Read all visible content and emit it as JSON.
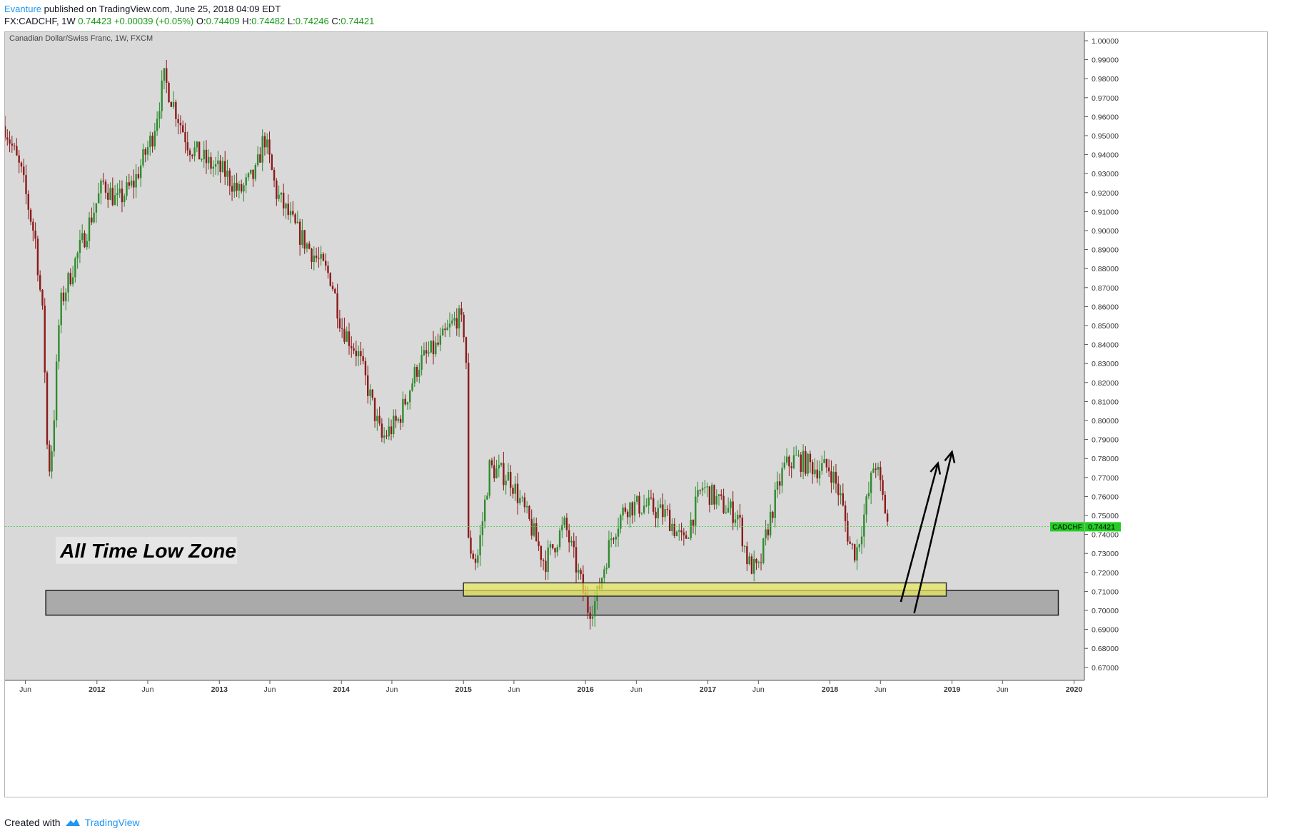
{
  "header": {
    "author": "Evanture",
    "published": " published on TradingView.com, June 25, 2018 04:09 EDT",
    "symbol": "FX:CADCHF, 1W",
    "last": "0.74423",
    "change": "+0.00039 (+0.05%)",
    "o_label": "O:",
    "o_value": "0.74409",
    "h_label": "H:",
    "h_value": "0.74482",
    "l_label": "L:",
    "l_value": "0.74246",
    "c_label": "C:",
    "c_value": "0.74421"
  },
  "footer": {
    "created_with": "Created with",
    "brand": "TradingView"
  },
  "colors": {
    "up": "#2e8b2e",
    "down": "#8b1a1a",
    "zone_gray": "#9a9a9a",
    "zone_yellow": "#e8e85a",
    "price_badge": "#22cc22",
    "plot_bg": "#d9d9d9"
  },
  "chart_data": {
    "type": "candlestick",
    "title": "Canadian Dollar/Swiss Franc, 1W, FXCM",
    "symbol": "CADCHF",
    "last_price": 0.74421,
    "last_price_label": "0.74421",
    "ylim": [
      0.665,
      1.005
    ],
    "y_ticks": [
      "1.00000",
      "0.99000",
      "0.98000",
      "0.97000",
      "0.96000",
      "0.95000",
      "0.94000",
      "0.93000",
      "0.92000",
      "0.91000",
      "0.90000",
      "0.89000",
      "0.88000",
      "0.87000",
      "0.86000",
      "0.85000",
      "0.84000",
      "0.83000",
      "0.82000",
      "0.81000",
      "0.80000",
      "0.79000",
      "0.78000",
      "0.77000",
      "0.76000",
      "0.75000",
      "0.74000",
      "0.73000",
      "0.72000",
      "0.71000",
      "0.70000",
      "0.69000",
      "0.68000",
      "0.67000"
    ],
    "x_range": [
      "2011-04-01",
      "2020-02-01"
    ],
    "x_ticks": [
      {
        "date": "2011-06-01",
        "label": "Jun"
      },
      {
        "date": "2012-01-01",
        "label": "2012"
      },
      {
        "date": "2012-06-01",
        "label": "Jun"
      },
      {
        "date": "2013-01-01",
        "label": "2013"
      },
      {
        "date": "2013-06-01",
        "label": "Jun"
      },
      {
        "date": "2014-01-01",
        "label": "2014"
      },
      {
        "date": "2014-06-01",
        "label": "Jun"
      },
      {
        "date": "2015-01-01",
        "label": "2015"
      },
      {
        "date": "2015-06-01",
        "label": "Jun"
      },
      {
        "date": "2016-01-01",
        "label": "2016"
      },
      {
        "date": "2016-06-01",
        "label": "Jun"
      },
      {
        "date": "2017-01-01",
        "label": "2017"
      },
      {
        "date": "2017-06-01",
        "label": "Jun"
      },
      {
        "date": "2018-01-01",
        "label": "2018"
      },
      {
        "date": "2018-06-01",
        "label": "Jun"
      },
      {
        "date": "2019-01-01",
        "label": "2019"
      },
      {
        "date": "2019-06-01",
        "label": "Jun"
      },
      {
        "date": "2020-01-01",
        "label": "2020"
      }
    ],
    "price_path": [
      [
        "2011-04-01",
        0.955
      ],
      [
        "2011-05-20",
        0.93
      ],
      [
        "2011-07-01",
        0.895
      ],
      [
        "2011-07-25",
        0.85
      ],
      [
        "2011-08-08",
        0.77
      ],
      [
        "2011-08-22",
        0.79
      ],
      [
        "2011-09-12",
        0.86
      ],
      [
        "2011-10-20",
        0.88
      ],
      [
        "2011-12-01",
        0.9
      ],
      [
        "2012-01-20",
        0.925
      ],
      [
        "2012-03-01",
        0.915
      ],
      [
        "2012-04-20",
        0.925
      ],
      [
        "2012-06-15",
        0.95
      ],
      [
        "2012-07-20",
        0.98
      ],
      [
        "2012-08-20",
        0.965
      ],
      [
        "2012-10-01",
        0.945
      ],
      [
        "2012-12-01",
        0.935
      ],
      [
        "2013-01-20",
        0.93
      ],
      [
        "2013-03-01",
        0.92
      ],
      [
        "2013-04-20",
        0.93
      ],
      [
        "2013-05-15",
        0.95
      ],
      [
        "2013-06-20",
        0.92
      ],
      [
        "2013-08-20",
        0.9
      ],
      [
        "2013-10-20",
        0.885
      ],
      [
        "2013-12-01",
        0.875
      ],
      [
        "2014-01-01",
        0.85
      ],
      [
        "2014-02-20",
        0.835
      ],
      [
        "2014-04-01",
        0.81
      ],
      [
        "2014-05-01",
        0.79
      ],
      [
        "2014-06-20",
        0.8
      ],
      [
        "2014-08-20",
        0.83
      ],
      [
        "2014-10-20",
        0.84
      ],
      [
        "2014-12-15",
        0.855
      ],
      [
        "2015-01-08",
        0.845
      ],
      [
        "2015-01-16",
        0.735
      ],
      [
        "2015-02-10",
        0.725
      ],
      [
        "2015-03-20",
        0.775
      ],
      [
        "2015-05-20",
        0.77
      ],
      [
        "2015-07-20",
        0.745
      ],
      [
        "2015-09-01",
        0.725
      ],
      [
        "2015-10-15",
        0.74
      ],
      [
        "2015-11-01",
        0.745
      ],
      [
        "2015-12-01",
        0.725
      ],
      [
        "2016-01-10",
        0.7
      ],
      [
        "2016-02-01",
        0.705
      ],
      [
        "2016-03-20",
        0.74
      ],
      [
        "2016-05-01",
        0.755
      ],
      [
        "2016-07-01",
        0.755
      ],
      [
        "2016-09-01",
        0.75
      ],
      [
        "2016-10-20",
        0.735
      ],
      [
        "2016-12-15",
        0.765
      ],
      [
        "2017-02-15",
        0.755
      ],
      [
        "2017-04-01",
        0.75
      ],
      [
        "2017-05-01",
        0.725
      ],
      [
        "2017-06-01",
        0.72
      ],
      [
        "2017-07-01",
        0.745
      ],
      [
        "2017-08-15",
        0.775
      ],
      [
        "2017-09-20",
        0.78
      ],
      [
        "2017-11-20",
        0.775
      ],
      [
        "2018-01-01",
        0.775
      ],
      [
        "2018-02-01",
        0.76
      ],
      [
        "2018-03-01",
        0.735
      ],
      [
        "2018-03-20",
        0.73
      ],
      [
        "2018-05-01",
        0.765
      ],
      [
        "2018-05-15",
        0.78
      ],
      [
        "2018-06-01",
        0.765
      ],
      [
        "2018-06-25",
        0.7442
      ]
    ],
    "annotations": {
      "zone_label": "All Time Low Zone",
      "gray_zone": {
        "y_range": [
          0.6975,
          0.7105
        ],
        "x_range": [
          "2011-08-01",
          "2019-11-15"
        ]
      },
      "yellow_zone": {
        "y_range": [
          0.7075,
          0.7145
        ],
        "x_range": [
          "2015-01-01",
          "2018-12-15"
        ]
      },
      "arrows": [
        {
          "from": [
            "2018-08-01",
            0.7045
          ],
          "to": [
            "2018-11-20",
            0.7775
          ]
        },
        {
          "from": [
            "2018-09-10",
            0.6985
          ],
          "to": [
            "2019-01-01",
            0.7835
          ]
        }
      ]
    },
    "grid": false,
    "legend": "none"
  }
}
